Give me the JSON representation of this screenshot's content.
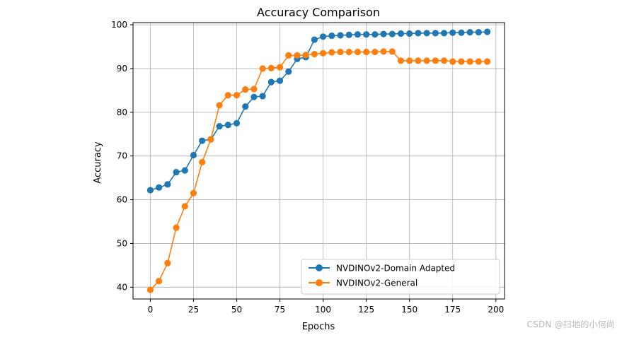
{
  "chart_data": {
    "type": "line",
    "title": "Accuracy Comparison",
    "xlabel": "Epochs",
    "ylabel": "Accuracy",
    "xlim": [
      -10,
      205
    ],
    "ylim": [
      37.3,
      100.5
    ],
    "xticks": [
      0,
      25,
      50,
      75,
      100,
      125,
      150,
      175,
      200
    ],
    "yticks": [
      40,
      50,
      60,
      70,
      80,
      90,
      100
    ],
    "grid": true,
    "legend_position": "lower right",
    "x": [
      0,
      5,
      10,
      15,
      20,
      25,
      30,
      35,
      40,
      45,
      50,
      55,
      60,
      65,
      70,
      75,
      80,
      85,
      90,
      95,
      100,
      105,
      110,
      115,
      120,
      125,
      130,
      135,
      140,
      145,
      150,
      155,
      160,
      165,
      170,
      175,
      180,
      185,
      190,
      195
    ],
    "series": [
      {
        "name": "NVDINOv2-Domain Adapted",
        "color": "#1f77b4",
        "values": [
          62.2,
          62.8,
          63.5,
          66.3,
          66.7,
          70.2,
          73.5,
          73.8,
          76.8,
          77.1,
          77.5,
          81.3,
          83.5,
          83.7,
          86.9,
          87.2,
          89.3,
          92.2,
          92.6,
          96.6,
          97.3,
          97.5,
          97.6,
          97.7,
          97.8,
          97.8,
          97.8,
          97.9,
          97.9,
          98.0,
          98.0,
          98.1,
          98.1,
          98.1,
          98.1,
          98.2,
          98.2,
          98.3,
          98.3,
          98.4
        ]
      },
      {
        "name": "NVDINOv2-General",
        "color": "#ff7f0e",
        "values": [
          39.4,
          41.4,
          45.5,
          53.6,
          58.5,
          61.5,
          68.6,
          73.8,
          81.6,
          83.9,
          83.9,
          85.2,
          85.3,
          90.0,
          90.1,
          90.3,
          93.0,
          93.0,
          93.1,
          93.3,
          93.5,
          93.7,
          93.8,
          93.8,
          93.8,
          93.8,
          93.8,
          93.9,
          93.9,
          91.8,
          91.8,
          91.8,
          91.8,
          91.8,
          91.8,
          91.6,
          91.6,
          91.6,
          91.6,
          91.6
        ]
      }
    ]
  },
  "watermark": "CSDN @扫地的小何尚"
}
